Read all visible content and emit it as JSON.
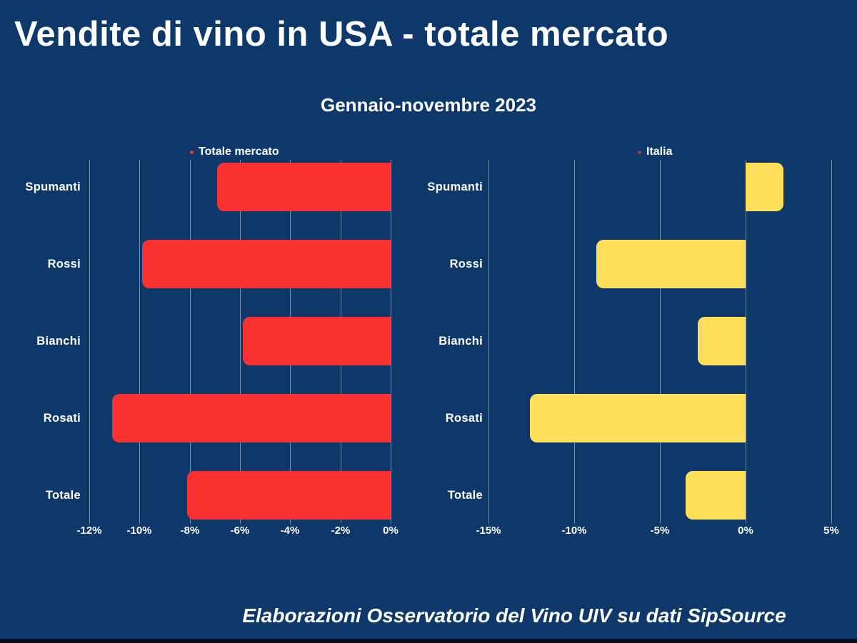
{
  "page": {
    "title": "Vendite di vino in USA - totale mercato",
    "subtitle": "Gennaio-novembre 2023",
    "footer": "Elaborazioni Osservatorio del Vino UIV su dati SipSource",
    "colors": {
      "background": "#0e3869",
      "text": "#ffffff",
      "bottom_strip": "#050d1a"
    }
  },
  "chart_data": [
    {
      "type": "bar",
      "orientation": "horizontal",
      "legend": "Totale mercato",
      "legend_position": "top",
      "legend_marker_color": "#e0393b",
      "bar_color": "#fb3232",
      "categories": [
        "Spumanti",
        "Rossi",
        "Bianchi",
        "Rosati",
        "Totale"
      ],
      "values": [
        -6.9,
        -9.9,
        -5.9,
        -11.1,
        -8.1
      ],
      "unit": "%",
      "xlabel": "",
      "ylabel": "",
      "xlim": [
        -12,
        0
      ],
      "tick_values": [
        -12,
        -10,
        -8,
        -6,
        -4,
        -2,
        0
      ],
      "ticks": [
        "-12%",
        "-10%",
        "-8%",
        "-6%",
        "-4%",
        "-2%",
        "0%"
      ],
      "grid": true
    },
    {
      "type": "bar",
      "orientation": "horizontal",
      "legend": "Italia",
      "legend_position": "top",
      "legend_marker_color": "#a03c3c",
      "bar_color": "#ffde59",
      "categories": [
        "Spumanti",
        "Rossi",
        "Bianchi",
        "Rosati",
        "Totale"
      ],
      "values": [
        2.2,
        -8.7,
        -2.8,
        -12.6,
        -3.5
      ],
      "unit": "%",
      "xlabel": "",
      "ylabel": "",
      "xlim": [
        -15,
        5
      ],
      "tick_values": [
        -15,
        -10,
        -5,
        0,
        5
      ],
      "ticks": [
        "-15%",
        "-10%",
        "-5%",
        "0%",
        "5%"
      ],
      "grid": true
    }
  ]
}
